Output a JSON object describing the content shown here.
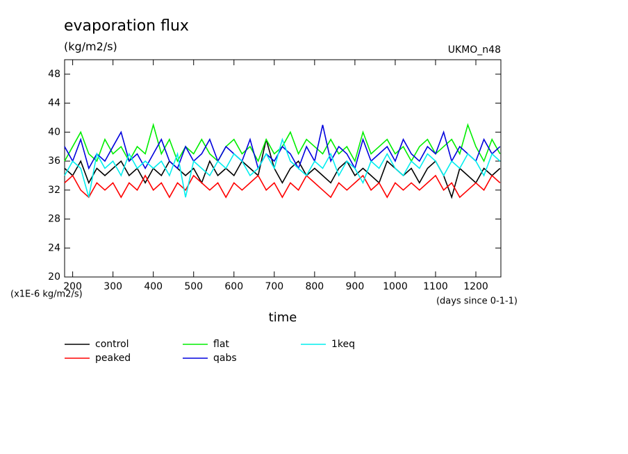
{
  "chart_data": {
    "type": "line",
    "title": "evaporation flux",
    "subtitle": "(kg/m2/s)",
    "annotation": "UKMO_n48",
    "y_unit_label": "(x1E-6 kg/m2/s)",
    "x_unit_label": "(days since 0-1-1)",
    "x_label": "time",
    "x": [
      180,
      200,
      220,
      240,
      260,
      280,
      300,
      320,
      340,
      360,
      380,
      400,
      420,
      440,
      460,
      480,
      500,
      520,
      540,
      560,
      580,
      600,
      620,
      640,
      660,
      680,
      700,
      720,
      740,
      760,
      780,
      800,
      820,
      840,
      860,
      880,
      900,
      920,
      940,
      960,
      980,
      1000,
      1020,
      1040,
      1060,
      1080,
      1100,
      1120,
      1140,
      1160,
      1180,
      1200,
      1220,
      1240,
      1260
    ],
    "xlim": [
      180,
      1262
    ],
    "xticks": [
      200,
      300,
      400,
      500,
      600,
      700,
      800,
      900,
      1000,
      1100,
      1200
    ],
    "ylim": [
      20,
      50
    ],
    "yticks": [
      20,
      24,
      28,
      32,
      36,
      40,
      44,
      48
    ],
    "series": [
      {
        "name": "control",
        "color": "#000000",
        "values": [
          35,
          34,
          36,
          33,
          35,
          34,
          35,
          36,
          34,
          35,
          33,
          35,
          34,
          36,
          35,
          34,
          35,
          33,
          36,
          34,
          35,
          34,
          36,
          35,
          34,
          39,
          35,
          33,
          35,
          36,
          34,
          35,
          34,
          33,
          35,
          36,
          34,
          35,
          34,
          33,
          36,
          35,
          34,
          35,
          33,
          35,
          36,
          34,
          31,
          35,
          34,
          33,
          35,
          34,
          35
        ]
      },
      {
        "name": "peaked",
        "color": "#ff0000",
        "values": [
          33,
          34,
          32,
          31,
          33,
          32,
          33,
          31,
          33,
          32,
          34,
          32,
          33,
          31,
          33,
          32,
          34,
          33,
          32,
          33,
          31,
          33,
          32,
          33,
          34,
          32,
          33,
          31,
          33,
          32,
          34,
          33,
          32,
          31,
          33,
          32,
          33,
          34,
          32,
          33,
          31,
          33,
          32,
          33,
          32,
          33,
          34,
          32,
          33,
          31,
          32,
          33,
          32,
          34,
          33
        ]
      },
      {
        "name": "flat",
        "color": "#00ee00",
        "values": [
          36,
          38,
          40,
          37,
          36,
          39,
          37,
          38,
          36,
          38,
          37,
          41,
          37,
          39,
          36,
          38,
          37,
          39,
          37,
          36,
          38,
          39,
          37,
          38,
          36,
          39,
          37,
          38,
          40,
          37,
          39,
          38,
          37,
          39,
          37,
          38,
          36,
          40,
          37,
          38,
          39,
          37,
          38,
          36,
          38,
          39,
          37,
          38,
          39,
          37,
          41,
          38,
          36,
          39,
          37
        ]
      },
      {
        "name": "qabs",
        "color": "#0000dd",
        "values": [
          38,
          36,
          39,
          35,
          37,
          36,
          38,
          40,
          36,
          37,
          35,
          37,
          39,
          36,
          35,
          38,
          36,
          37,
          39,
          36,
          38,
          37,
          36,
          39,
          35,
          37,
          36,
          38,
          37,
          35,
          38,
          36,
          41,
          36,
          38,
          37,
          35,
          39,
          36,
          37,
          38,
          36,
          39,
          37,
          36,
          38,
          37,
          40,
          36,
          38,
          37,
          36,
          39,
          37,
          38
        ]
      },
      {
        "name": "1keq",
        "color": "#00eeee",
        "values": [
          34,
          36,
          35,
          31,
          37,
          35,
          36,
          34,
          37,
          35,
          36,
          35,
          36,
          34,
          37,
          31,
          36,
          35,
          34,
          36,
          35,
          37,
          36,
          34,
          35,
          37,
          35,
          39,
          36,
          35,
          34,
          36,
          35,
          37,
          34,
          36,
          35,
          33,
          36,
          35,
          37,
          35,
          34,
          36,
          35,
          37,
          36,
          34,
          36,
          35,
          37,
          36,
          34,
          37,
          36
        ]
      }
    ]
  }
}
